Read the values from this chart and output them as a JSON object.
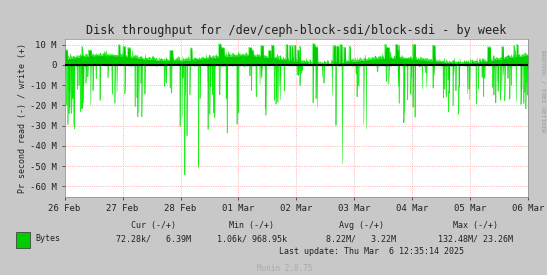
{
  "title": "Disk throughput for /dev/ceph-block-sdi/block-sdi - by week",
  "ylabel": "Pr second read (-) / write (+)",
  "line_color": "#00EE00",
  "fill_color": "#00CC00",
  "ylim": [
    -65000000,
    13000000
  ],
  "yticks": [
    10000000,
    0,
    -10000000,
    -20000000,
    -30000000,
    -40000000,
    -50000000,
    -60000000
  ],
  "ytick_labels": [
    "10 M",
    "0",
    "-10 M",
    "-20 M",
    "-30 M",
    "-40 M",
    "-50 M",
    "-60 M"
  ],
  "xlabel_ticks": [
    "26 Feb",
    "27 Feb",
    "28 Feb",
    "01 Mar",
    "02 Mar",
    "03 Mar",
    "04 Mar",
    "05 Mar",
    "06 Mar"
  ],
  "outer_bg": "#C8C8C8",
  "inner_bg": "#FFFFFF",
  "grid_color": "#FF9999",
  "zero_line_color": "#000000",
  "sidebar_text": "RRDTOOL / TOBI OETIKER",
  "munin_label": "Munin 2.0.75",
  "seed": 12345,
  "n_points": 2016,
  "cur_neg": "72.28k",
  "cur_pos": "6.39M",
  "min_neg": "1.06k",
  "min_pos": "968.95k",
  "avg_neg": "8.22M",
  "avg_pos": "3.22M",
  "max_neg": "132.48M",
  "max_pos": "23.26M",
  "last_update": "Last update: Thu Mar  6 12:35:14 2025"
}
